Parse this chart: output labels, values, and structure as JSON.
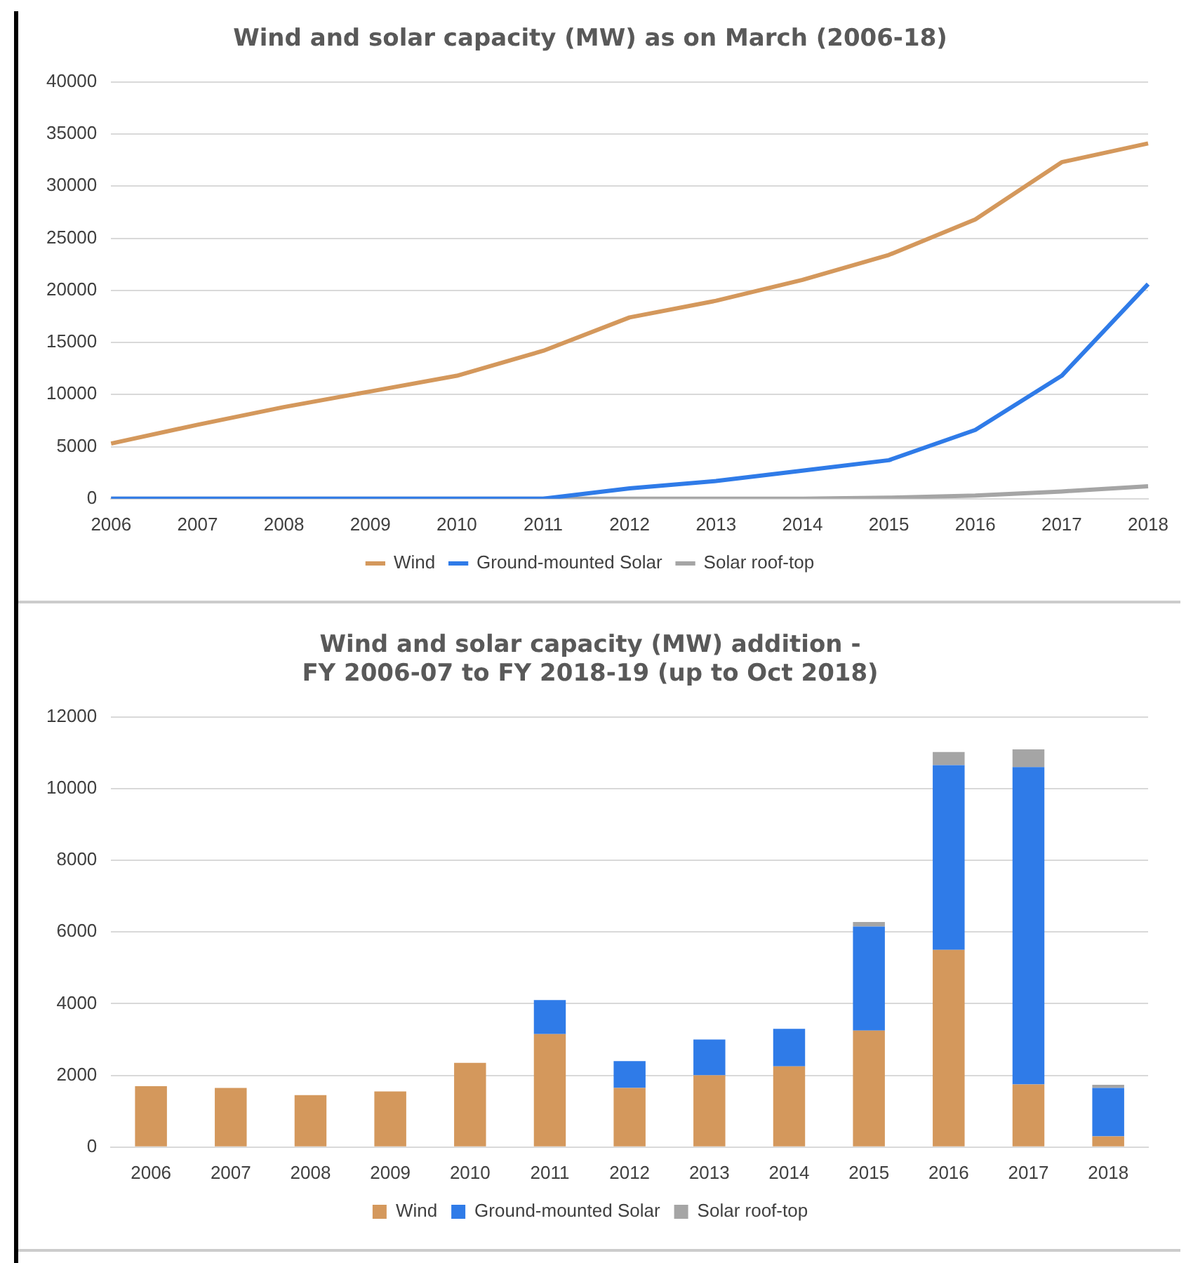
{
  "chart_data": [
    {
      "type": "line",
      "title": "Wind and solar capacity (MW) as on March (2006-18)",
      "categories": [
        "2006",
        "2007",
        "2008",
        "2009",
        "2010",
        "2011",
        "2012",
        "2013",
        "2014",
        "2015",
        "2016",
        "2017",
        "2018"
      ],
      "series": [
        {
          "name": "Wind",
          "color": "#d4985c",
          "values": [
            5300,
            7100,
            8800,
            10300,
            11800,
            14200,
            17400,
            19000,
            21000,
            23400,
            26800,
            32300,
            34100
          ]
        },
        {
          "name": "Ground-mounted Solar",
          "color": "#2f7be8",
          "values": [
            0,
            0,
            0,
            0,
            0,
            0,
            1000,
            1700,
            2700,
            3700,
            6600,
            11800,
            20600
          ]
        },
        {
          "name": "Solar roof-top",
          "color": "#a5a5a5",
          "values": [
            0,
            0,
            0,
            0,
            0,
            0,
            0,
            0,
            0,
            100,
            300,
            700,
            1200
          ]
        }
      ],
      "ylim": [
        0,
        40000
      ],
      "yticks": [
        0,
        5000,
        10000,
        15000,
        20000,
        25000,
        30000,
        35000,
        40000
      ],
      "grid": "y",
      "legend": "bottom",
      "marker": "none"
    },
    {
      "type": "bar",
      "stacked": true,
      "title": "Wind and solar capacity (MW) addition -\nFY 2006-07 to FY 2018-19 (up to Oct 2018)",
      "categories": [
        "2006",
        "2007",
        "2008",
        "2009",
        "2010",
        "2011",
        "2012",
        "2013",
        "2014",
        "2015",
        "2016",
        "2017",
        "2018"
      ],
      "series": [
        {
          "name": "Wind",
          "color": "#d4985c",
          "values": [
            1700,
            1650,
            1450,
            1550,
            2350,
            3150,
            1650,
            2000,
            2250,
            3250,
            5500,
            1750,
            300
          ]
        },
        {
          "name": "Ground-mounted Solar",
          "color": "#2f7be8",
          "values": [
            0,
            0,
            0,
            0,
            0,
            950,
            750,
            1000,
            1050,
            2900,
            5150,
            8850,
            1350
          ]
        },
        {
          "name": "Solar roof-top",
          "color": "#a5a5a5",
          "values": [
            0,
            0,
            0,
            0,
            0,
            0,
            0,
            0,
            0,
            130,
            370,
            490,
            90
          ]
        }
      ],
      "ylim": [
        0,
        12000
      ],
      "yticks": [
        0,
        2000,
        4000,
        6000,
        8000,
        10000,
        12000
      ],
      "grid": "y",
      "legend": "bottom"
    }
  ]
}
